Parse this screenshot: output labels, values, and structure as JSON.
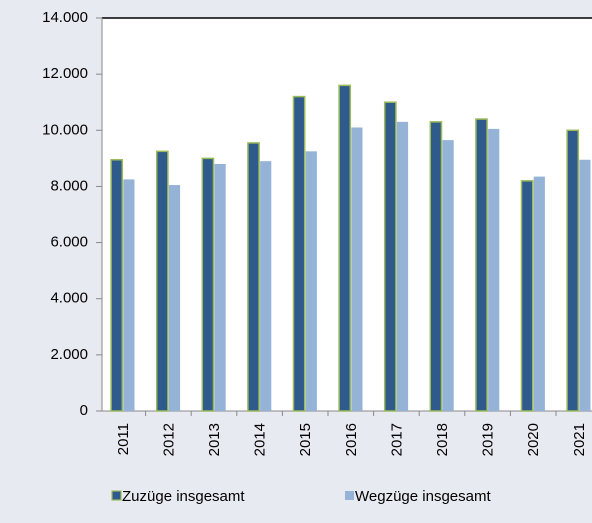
{
  "chart_data": {
    "type": "bar",
    "categories": [
      "2011",
      "2012",
      "2013",
      "2014",
      "2015",
      "2016",
      "2017",
      "2018",
      "2019",
      "2020",
      "2021"
    ],
    "series": [
      {
        "name": "Zuzüge insgesamt",
        "color": "#2f5a8c",
        "values": [
          8950,
          9250,
          9000,
          9550,
          11200,
          11600,
          11000,
          10300,
          10400,
          8200,
          10000
        ]
      },
      {
        "name": "Wegzüge insgesamt",
        "color": "#95b3d7",
        "values": [
          8250,
          8050,
          8800,
          8900,
          9250,
          10100,
          10300,
          9650,
          10050,
          8350,
          8950
        ]
      }
    ],
    "ylim": [
      0,
      14000
    ],
    "yticks": [
      0,
      {
        "value": 2000,
        "label": "2.000"
      },
      {
        "value": 4000,
        "label": "4.000"
      },
      {
        "value": 6000,
        "label": "6.000"
      },
      {
        "value": 8000,
        "label": "8.000"
      },
      {
        "value": 10000,
        "label": "10.000"
      },
      {
        "value": 12000,
        "label": "12.000"
      },
      {
        "value": 14000,
        "label": "14.000"
      }
    ],
    "grid": false,
    "legend": "bottom"
  }
}
